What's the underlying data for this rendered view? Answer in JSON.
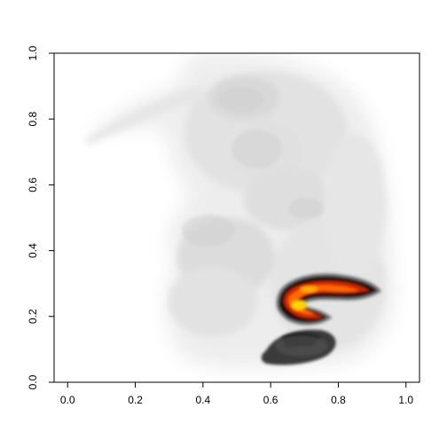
{
  "chart_data": {
    "type": "heatmap",
    "title": "",
    "xlabel": "",
    "ylabel": "",
    "xlim": [
      -0.04,
      1.04
    ],
    "ylim": [
      0.0,
      1.0
    ],
    "x_ticks": [
      "0.0",
      "0.2",
      "0.4",
      "0.6",
      "0.8",
      "1.0"
    ],
    "y_ticks": [
      "0.0",
      "0.2",
      "0.4",
      "0.6",
      "0.8",
      "1.0"
    ],
    "grid": false,
    "legend": "none",
    "background_layer": "grayscale projection of embryo, values 0 to 1",
    "overlay_layer": "hot colormap intensity concentrated near x 0.62-0.95, y 0.18-0.32",
    "dark_cluster": "dark gray blob near x 0.60-0.85, y 0.05-0.16",
    "colors": {
      "gray_light": "#e8e8e8",
      "gray_mid": "#bdbdbd",
      "dark": "#2a2a2a",
      "black": "#000000",
      "red": "#d42a0a",
      "orange": "#ff7a00",
      "yellow": "#ffd400"
    }
  }
}
